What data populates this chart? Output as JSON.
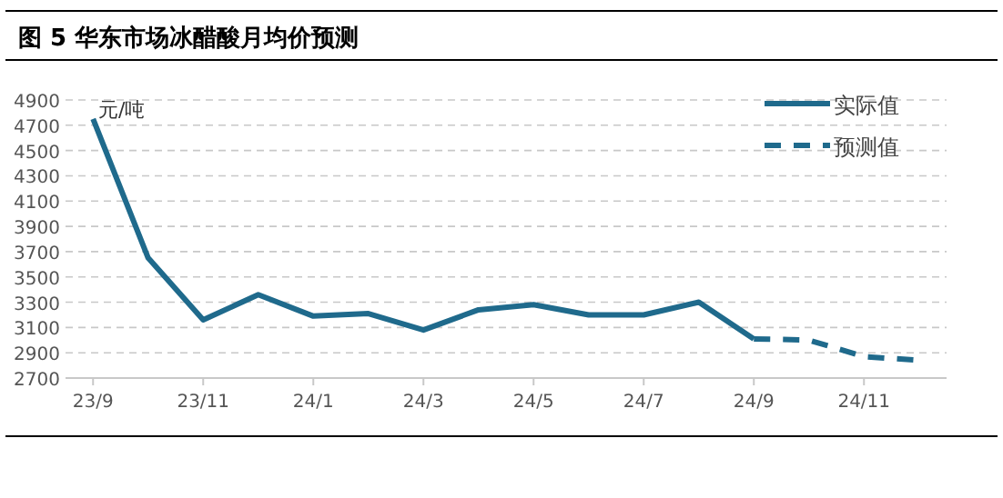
{
  "chart_data": {
    "type": "line",
    "title": "图 5 华东市场冰醋酸月均价预测",
    "ylabel": "元/吨",
    "categories": [
      "23/9",
      null,
      "23/11",
      null,
      "24/1",
      null,
      "24/3",
      null,
      "24/5",
      null,
      "24/7",
      null,
      "24/9",
      null,
      "24/11",
      null
    ],
    "series": [
      {
        "name": "实际值",
        "color": "#1f6a8c",
        "line_style": "solid",
        "values": [
          4750,
          3650,
          3160,
          3360,
          3190,
          3210,
          3080,
          3240,
          3280,
          3200,
          3200,
          3300,
          3010,
          null,
          null,
          null
        ]
      },
      {
        "name": "预测值",
        "color": "#1f6a8c",
        "line_style": "dashed",
        "values": [
          null,
          null,
          null,
          null,
          null,
          null,
          null,
          null,
          null,
          null,
          null,
          null,
          3010,
          3000,
          2870,
          2840
        ]
      }
    ],
    "ylim": [
      2700,
      4900
    ],
    "yticks": [
      2700,
      2900,
      3100,
      3300,
      3500,
      3700,
      3900,
      4100,
      4300,
      4500,
      4700,
      4900
    ],
    "grid": "y",
    "legend": "top right"
  }
}
